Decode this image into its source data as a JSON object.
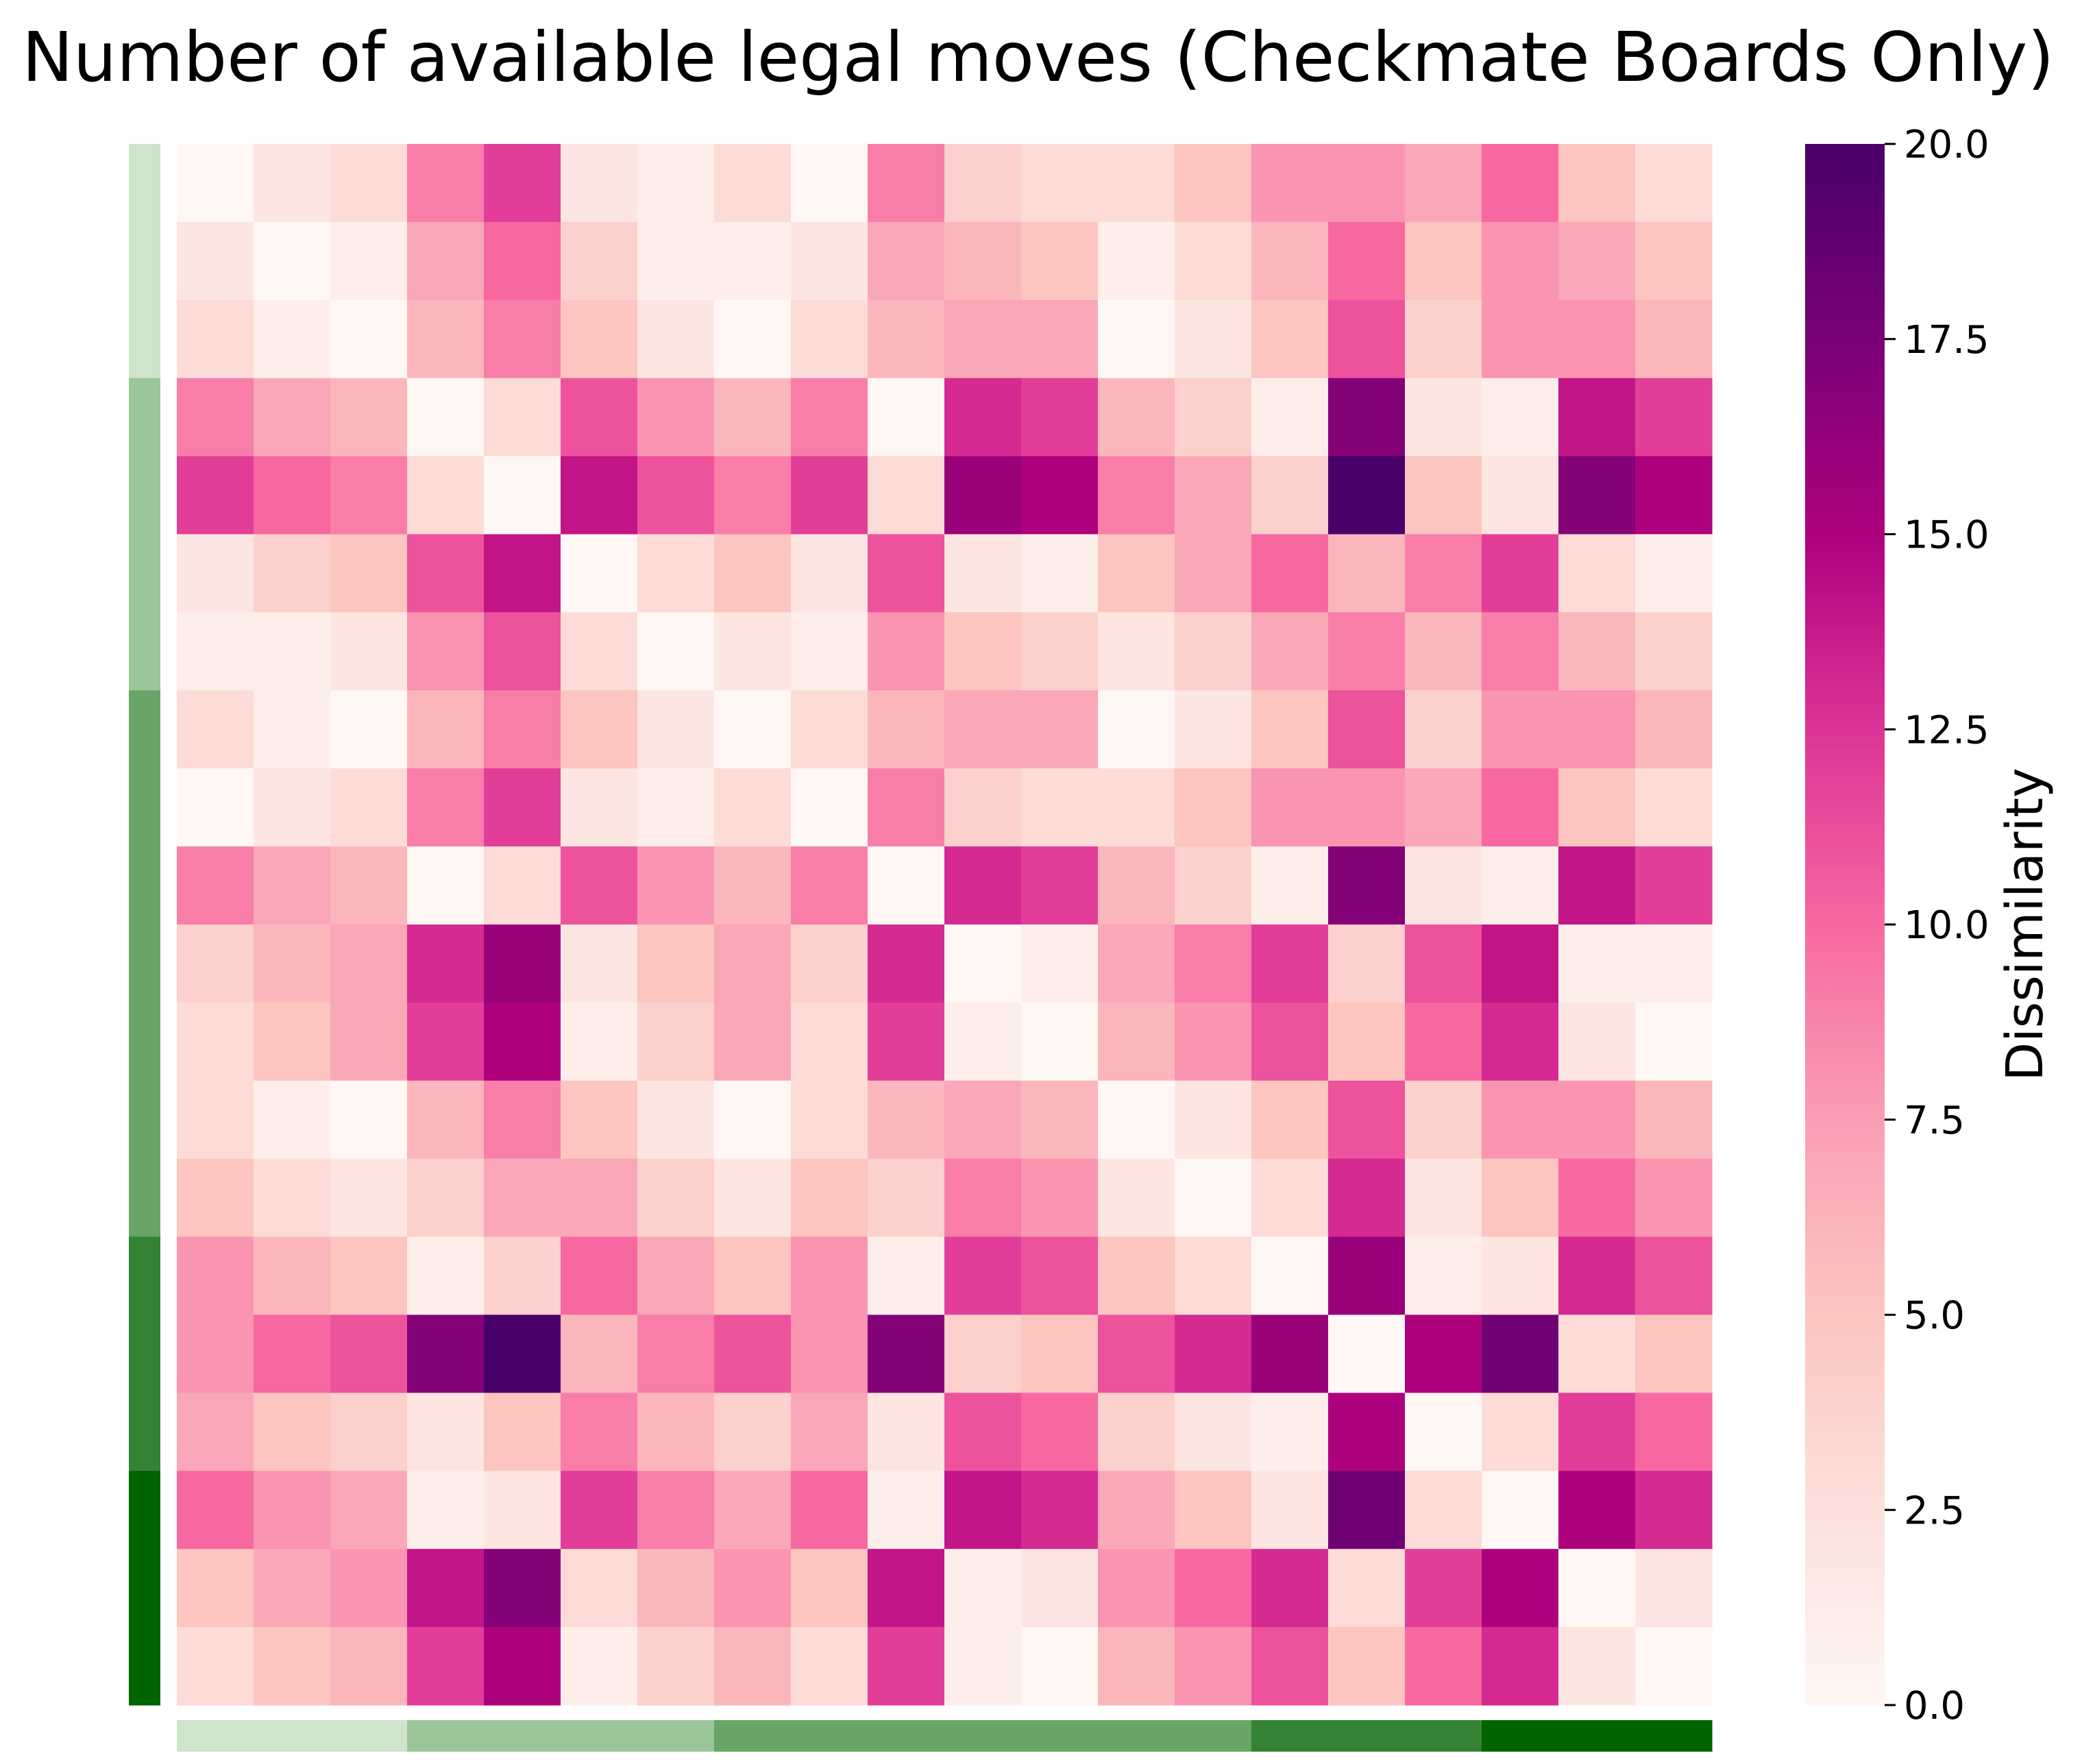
{
  "chart_data": {
    "type": "heatmap",
    "title": "Number of available legal moves (Checkmate Boards Only)",
    "colorbar": {
      "label": "Dissimilarity",
      "range": [
        0,
        20
      ],
      "ticks": [
        "0.0",
        "2.5",
        "5.0",
        "7.5",
        "10.0",
        "12.5",
        "15.0",
        "17.5",
        "20.0"
      ],
      "tick_values": [
        0,
        2.5,
        5,
        7.5,
        10,
        12.5,
        15,
        17.5,
        20
      ],
      "colormap": "RdPu"
    },
    "group_labels": [
      0,
      0,
      0,
      1,
      1,
      1,
      1,
      2,
      2,
      2,
      2,
      2,
      2,
      2,
      3,
      3,
      3,
      4,
      4,
      4
    ],
    "group_colors": [
      "#cfe3cd",
      "#9bc69a",
      "#68a567",
      "#348234",
      "#006400"
    ],
    "matrix": [
      [
        0.0,
        2.0,
        3.0,
        9.0,
        12.0,
        2.0,
        1.0,
        3.0,
        0.0,
        9.0,
        4.0,
        3.0,
        3.0,
        5.0,
        8.0,
        8.0,
        7.0,
        10.0,
        5.0,
        3.0
      ],
      [
        2.0,
        0.0,
        1.0,
        7.0,
        10.0,
        4.0,
        1.0,
        1.0,
        2.0,
        7.0,
        6.0,
        5.0,
        1.0,
        3.0,
        6.0,
        10.0,
        5.0,
        8.0,
        7.0,
        5.0
      ],
      [
        3.0,
        1.0,
        0.0,
        6.0,
        9.0,
        5.0,
        2.0,
        0.0,
        3.0,
        6.0,
        7.0,
        7.0,
        0.0,
        2.0,
        5.0,
        11.0,
        4.0,
        8.0,
        8.0,
        6.0
      ],
      [
        9.0,
        7.0,
        6.0,
        0.0,
        3.0,
        11.0,
        8.0,
        6.0,
        9.0,
        0.0,
        13.0,
        12.0,
        6.0,
        4.0,
        1.0,
        17.0,
        2.0,
        1.0,
        14.0,
        12.0
      ],
      [
        12.0,
        10.0,
        9.0,
        3.0,
        0.0,
        14.0,
        11.0,
        9.0,
        12.0,
        3.0,
        16.0,
        15.0,
        9.0,
        7.0,
        4.0,
        20.0,
        5.0,
        2.0,
        17.0,
        15.0
      ],
      [
        2.0,
        4.0,
        5.0,
        11.0,
        14.0,
        0.0,
        3.0,
        5.0,
        2.0,
        11.0,
        2.0,
        1.0,
        5.0,
        7.0,
        10.0,
        6.0,
        9.0,
        12.0,
        3.0,
        1.0
      ],
      [
        1.0,
        1.0,
        2.0,
        8.0,
        11.0,
        3.0,
        0.0,
        2.0,
        1.0,
        8.0,
        5.0,
        4.0,
        2.0,
        4.0,
        7.0,
        9.0,
        6.0,
        9.0,
        6.0,
        4.0
      ],
      [
        3.0,
        1.0,
        0.0,
        6.0,
        9.0,
        5.0,
        2.0,
        0.0,
        3.0,
        6.0,
        7.0,
        7.0,
        0.0,
        2.0,
        5.0,
        11.0,
        4.0,
        8.0,
        8.0,
        6.0
      ],
      [
        0.0,
        2.0,
        3.0,
        9.0,
        12.0,
        2.0,
        1.0,
        3.0,
        0.0,
        9.0,
        4.0,
        3.0,
        3.0,
        5.0,
        8.0,
        8.0,
        7.0,
        10.0,
        5.0,
        3.0
      ],
      [
        9.0,
        7.0,
        6.0,
        0.0,
        3.0,
        11.0,
        8.0,
        6.0,
        9.0,
        0.0,
        13.0,
        12.0,
        6.0,
        4.0,
        1.0,
        17.0,
        2.0,
        1.0,
        14.0,
        12.0
      ],
      [
        4.0,
        6.0,
        7.0,
        13.0,
        16.0,
        2.0,
        5.0,
        7.0,
        4.0,
        13.0,
        0.0,
        1.0,
        7.0,
        9.0,
        12.0,
        4.0,
        11.0,
        14.0,
        1.0,
        1.0
      ],
      [
        3.0,
        5.0,
        7.0,
        12.0,
        15.0,
        1.0,
        4.0,
        7.0,
        3.0,
        12.0,
        1.0,
        0.0,
        6.0,
        8.0,
        11.0,
        5.0,
        10.0,
        13.0,
        2.0,
        0.0
      ],
      [
        3.0,
        1.0,
        0.0,
        6.0,
        9.0,
        5.0,
        2.0,
        0.0,
        3.0,
        6.0,
        7.0,
        6.0,
        0.0,
        2.0,
        5.0,
        11.0,
        4.0,
        8.0,
        8.0,
        6.0
      ],
      [
        5.0,
        3.0,
        2.0,
        4.0,
        7.0,
        7.0,
        4.0,
        2.0,
        5.0,
        4.0,
        9.0,
        8.0,
        2.0,
        0.0,
        3.0,
        13.0,
        2.0,
        5.0,
        10.0,
        8.0
      ],
      [
        8.0,
        6.0,
        5.0,
        1.0,
        4.0,
        10.0,
        7.0,
        5.0,
        8.0,
        1.0,
        12.0,
        11.0,
        5.0,
        3.0,
        0.0,
        16.0,
        1.0,
        2.0,
        13.0,
        11.0
      ],
      [
        8.0,
        10.0,
        11.0,
        17.0,
        20.0,
        6.0,
        9.0,
        11.0,
        8.0,
        17.0,
        4.0,
        5.0,
        11.0,
        13.0,
        16.0,
        0.0,
        15.0,
        18.0,
        3.0,
        5.0
      ],
      [
        7.0,
        5.0,
        4.0,
        2.0,
        5.0,
        9.0,
        6.0,
        4.0,
        7.0,
        2.0,
        11.0,
        10.0,
        4.0,
        2.0,
        1.0,
        15.0,
        0.0,
        3.0,
        12.0,
        10.0
      ],
      [
        10.0,
        8.0,
        7.0,
        1.0,
        2.0,
        12.0,
        9.0,
        7.0,
        10.0,
        1.0,
        14.0,
        13.0,
        7.0,
        5.0,
        2.0,
        18.0,
        3.0,
        0.0,
        15.0,
        13.0
      ],
      [
        5.0,
        7.0,
        8.0,
        14.0,
        17.0,
        3.0,
        6.0,
        8.0,
        5.0,
        14.0,
        1.0,
        2.0,
        8.0,
        10.0,
        13.0,
        3.0,
        12.0,
        15.0,
        0.0,
        2.0
      ],
      [
        3.0,
        5.0,
        6.0,
        12.0,
        15.0,
        1.0,
        4.0,
        6.0,
        3.0,
        12.0,
        1.0,
        0.0,
        6.0,
        8.0,
        11.0,
        5.0,
        10.0,
        13.0,
        2.0,
        0.0
      ]
    ]
  }
}
